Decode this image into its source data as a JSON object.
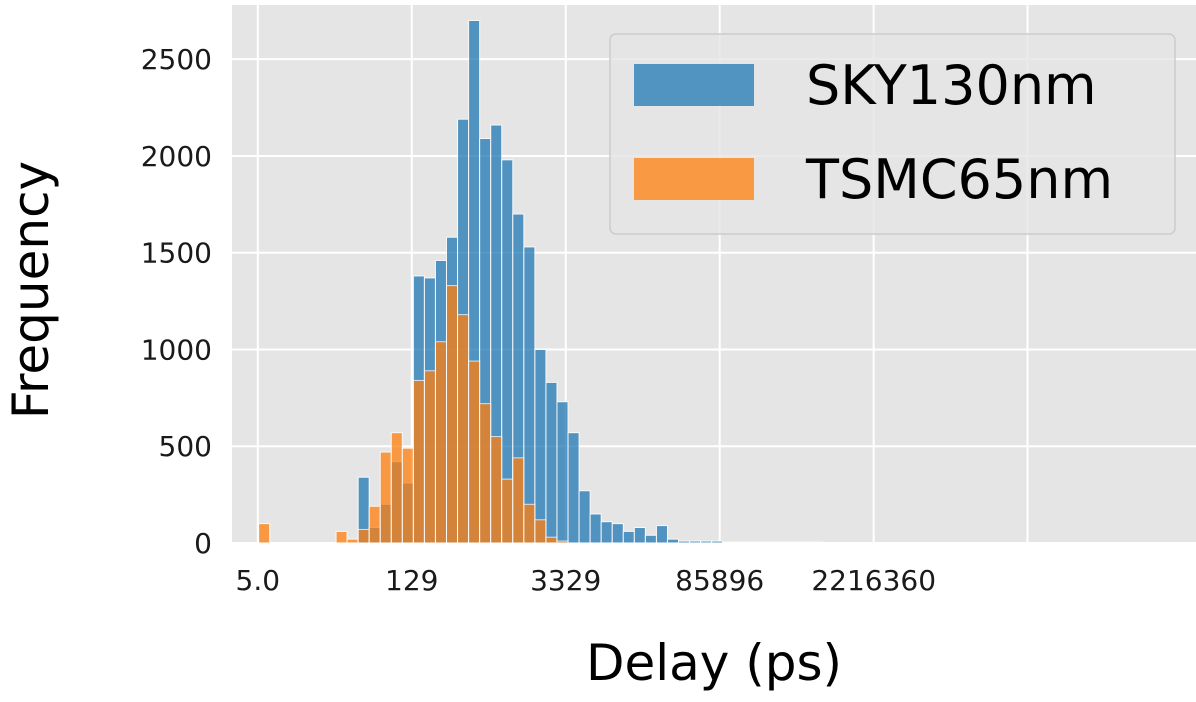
{
  "chart_data": {
    "type": "bar",
    "title": "",
    "xlabel": "Delay (ps)",
    "ylabel": "Frequency",
    "x_scale": "log",
    "xlim": [
      2.9,
      2000000000
    ],
    "ylim": [
      0,
      2780
    ],
    "grid": true,
    "background": "#e5e5e5",
    "legend_position": "top-right",
    "x_ticks": [
      {
        "value": 5.0,
        "label": "5.0"
      },
      {
        "value": 129,
        "label": "129"
      },
      {
        "value": 3329,
        "label": "3329"
      },
      {
        "value": 85896,
        "label": "85896"
      },
      {
        "value": 2216360,
        "label": "2216360"
      }
    ],
    "y_ticks": [
      {
        "value": 0,
        "label": "0"
      },
      {
        "value": 500,
        "label": "500"
      },
      {
        "value": 1000,
        "label": "1000"
      },
      {
        "value": 1500,
        "label": "1500"
      },
      {
        "value": 2000,
        "label": "2000"
      },
      {
        "value": 2500,
        "label": "2500"
      }
    ],
    "x_extra_gridlines": [
      57000000
    ],
    "bin_edges": [
      5.09,
      6.43,
      8.12,
      10.3,
      13.0,
      16.4,
      20.6,
      26.1,
      32.9,
      41.6,
      52.5,
      66.3,
      83.7,
      105.7,
      133.5,
      168.5,
      212.7,
      268.5,
      339.2,
      428.4,
      540.8,
      683,
      862,
      1088.5,
      1375,
      1736,
      2192,
      2767,
      3495,
      4413,
      5572,
      7035,
      8885,
      11220,
      14165,
      17885,
      22590,
      28520,
      36010,
      45470,
      57420,
      72510,
      91560,
      115600,
      146000,
      184300,
      232800,
      293900,
      371100,
      468600,
      591700,
      747200
    ],
    "series": [
      {
        "name": "SKY130nm",
        "color": "#1f77b4",
        "values": [
          0,
          0,
          0,
          0,
          0,
          0,
          0,
          0,
          0,
          340,
          80,
          200,
          420,
          310,
          1380,
          1370,
          1460,
          1580,
          2190,
          2700,
          2090,
          2160,
          1980,
          1700,
          1530,
          1000,
          830,
          730,
          570,
          270,
          150,
          110,
          100,
          60,
          80,
          40,
          90,
          20,
          10,
          10,
          10,
          10,
          5,
          5,
          5,
          5,
          5,
          5,
          5,
          5,
          5
        ]
      },
      {
        "name": "TSMC65nm",
        "color": "#ff7f0e",
        "values": [
          100,
          0,
          0,
          0,
          0,
          0,
          0,
          60,
          20,
          70,
          190,
          470,
          570,
          490,
          840,
          890,
          1040,
          1330,
          1180,
          940,
          720,
          550,
          330,
          440,
          200,
          120,
          30,
          10,
          0,
          0,
          0,
          0,
          0,
          0,
          0,
          0,
          0,
          0,
          0,
          0,
          0,
          0,
          0,
          0,
          0,
          0,
          0,
          0,
          0,
          0,
          0
        ]
      }
    ]
  }
}
